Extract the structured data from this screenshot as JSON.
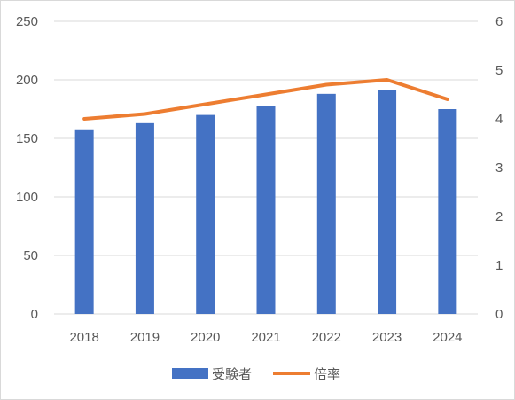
{
  "chart_data": {
    "type": "bar",
    "title": "",
    "categories": [
      "2018",
      "2019",
      "2020",
      "2021",
      "2022",
      "2023",
      "2024"
    ],
    "series": [
      {
        "name": "受験者",
        "type": "bar",
        "axis": "left",
        "color": "#4472C4",
        "values": [
          157,
          163,
          170,
          178,
          188,
          191,
          175
        ]
      },
      {
        "name": "倍率",
        "type": "line",
        "axis": "right",
        "color": "#ED7D31",
        "values": [
          4.0,
          4.1,
          4.3,
          4.5,
          4.7,
          4.8,
          4.4
        ]
      }
    ],
    "y_left": {
      "min": 0,
      "max": 250,
      "ticks": [
        "0",
        "50",
        "100",
        "150",
        "200",
        "250"
      ]
    },
    "y_right": {
      "min": 0,
      "max": 6,
      "ticks": [
        "0",
        "1",
        "2",
        "3",
        "4",
        "5",
        "6"
      ]
    },
    "grid": true,
    "legend_position": "bottom",
    "xlabel": "",
    "ylabel": ""
  }
}
